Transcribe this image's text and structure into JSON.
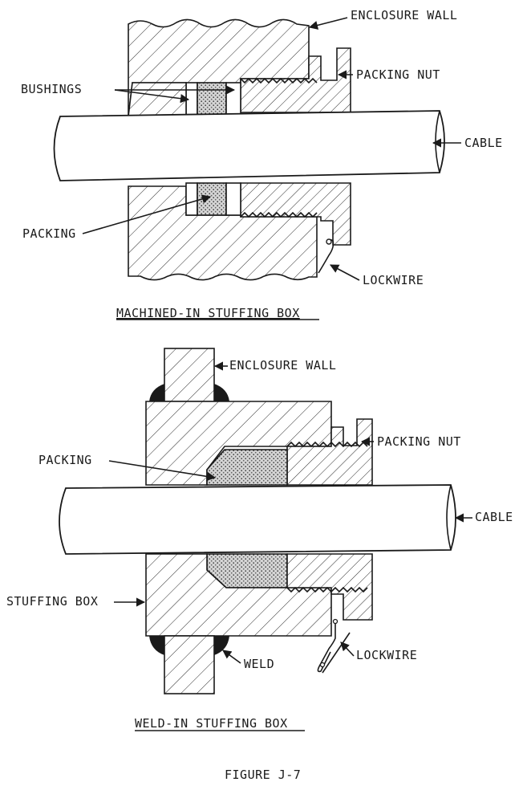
{
  "top_diagram": {
    "labels": {
      "enclosure_wall": "ENCLOSURE WALL",
      "packing_nut": "PACKING NUT",
      "bushings": "BUSHINGS",
      "cable": "CABLE",
      "packing": "PACKING",
      "lockwire": "LOCKWIRE"
    },
    "caption": "MACHINED-IN STUFFING BOX"
  },
  "bottom_diagram": {
    "labels": {
      "enclosure_wall": "ENCLOSURE WALL",
      "packing_nut": "PACKING NUT",
      "packing": "PACKING",
      "cable": "CABLE",
      "stuffing_box": "STUFFING BOX",
      "weld": "WELD",
      "lockwire": "LOCKWIRE"
    },
    "caption": "WELD-IN STUFFING BOX"
  },
  "figure_title": "FIGURE J-7"
}
